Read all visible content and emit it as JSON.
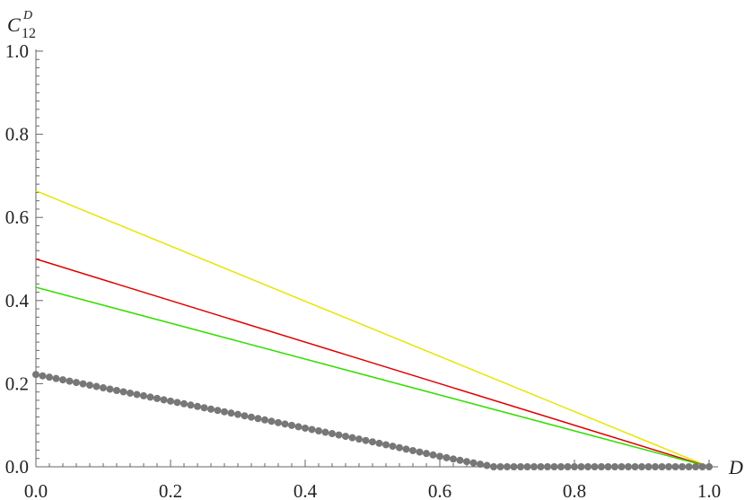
{
  "chart_data": {
    "type": "line",
    "title": "",
    "xlabel": "D",
    "ylabel": {
      "base": "C",
      "sup": "D",
      "sub": "12"
    },
    "xlim": [
      0.0,
      1.0
    ],
    "ylim": [
      0.0,
      1.0
    ],
    "xticks": [
      "0.0",
      "0.2",
      "0.4",
      "0.6",
      "0.8",
      "1.0"
    ],
    "yticks": [
      "0.0",
      "0.2",
      "0.4",
      "0.6",
      "0.8",
      "1.0"
    ],
    "grid": false,
    "legend": "none",
    "series": [
      {
        "color": "#e6e600",
        "style": "line",
        "x": [
          0.0,
          1.0
        ],
        "y": [
          0.664,
          0.0
        ]
      },
      {
        "color": "#e00000",
        "style": "line",
        "x": [
          0.0,
          1.0
        ],
        "y": [
          0.5,
          0.0
        ]
      },
      {
        "color": "#33dd00",
        "style": "line",
        "x": [
          0.0,
          1.0
        ],
        "y": [
          0.432,
          0.0
        ]
      },
      {
        "color": "#777777",
        "style": "dots",
        "x": [
          0.0,
          0.1,
          0.2,
          0.3,
          0.4,
          0.5,
          0.6,
          0.68,
          0.7,
          0.8,
          0.9,
          1.0
        ],
        "y": [
          0.222,
          0.19,
          0.158,
          0.126,
          0.093,
          0.06,
          0.025,
          0.0,
          0.0,
          0.0,
          0.0,
          0.0
        ]
      }
    ]
  }
}
